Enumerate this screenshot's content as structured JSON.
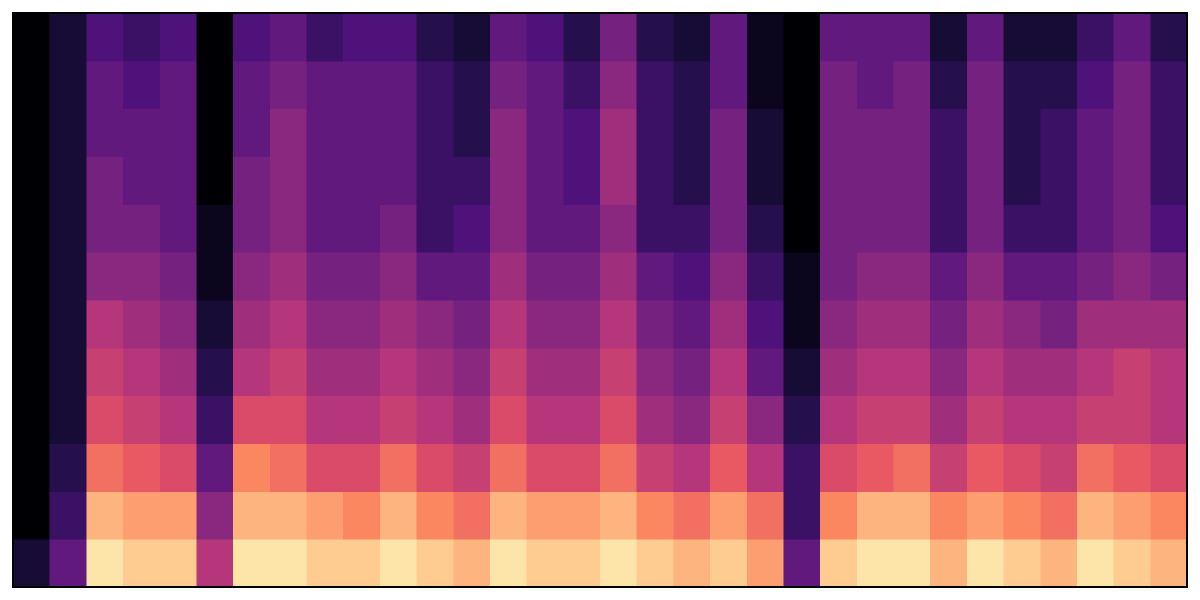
{
  "chart_data": {
    "type": "heatmap",
    "colormap": "magma",
    "zlim": [
      0,
      1
    ],
    "z": [
      [
        0.1,
        0.3,
        0.95,
        0.9,
        0.9,
        0.5,
        0.95,
        0.95,
        0.9,
        0.9,
        0.95,
        0.9,
        0.85,
        0.95,
        0.9,
        0.9,
        0.95,
        0.9,
        0.85,
        0.9,
        0.8,
        0.3,
        0.9,
        0.95,
        0.95,
        0.85,
        0.95,
        0.9,
        0.85,
        0.95,
        0.9,
        0.85
      ],
      [
        0,
        0.2,
        0.85,
        0.8,
        0.8,
        0.4,
        0.85,
        0.85,
        0.8,
        0.75,
        0.85,
        0.75,
        0.7,
        0.85,
        0.8,
        0.8,
        0.85,
        0.75,
        0.7,
        0.8,
        0.7,
        0.2,
        0.75,
        0.85,
        0.85,
        0.75,
        0.8,
        0.75,
        0.7,
        0.85,
        0.8,
        0.75
      ],
      [
        0,
        0.15,
        0.7,
        0.65,
        0.6,
        0.3,
        0.75,
        0.7,
        0.6,
        0.6,
        0.7,
        0.6,
        0.55,
        0.7,
        0.6,
        0.6,
        0.7,
        0.55,
        0.5,
        0.65,
        0.5,
        0.2,
        0.6,
        0.65,
        0.7,
        0.55,
        0.65,
        0.6,
        0.55,
        0.7,
        0.65,
        0.6
      ],
      [
        0,
        0.1,
        0.6,
        0.55,
        0.5,
        0.2,
        0.6,
        0.6,
        0.5,
        0.5,
        0.55,
        0.5,
        0.45,
        0.6,
        0.5,
        0.5,
        0.6,
        0.45,
        0.4,
        0.55,
        0.4,
        0.15,
        0.5,
        0.55,
        0.55,
        0.45,
        0.55,
        0.5,
        0.5,
        0.55,
        0.55,
        0.5
      ],
      [
        0,
        0.1,
        0.55,
        0.5,
        0.45,
        0.15,
        0.5,
        0.55,
        0.45,
        0.45,
        0.5,
        0.45,
        0.4,
        0.55,
        0.45,
        0.45,
        0.55,
        0.4,
        0.35,
        0.5,
        0.3,
        0.1,
        0.45,
        0.5,
        0.5,
        0.4,
        0.5,
        0.45,
        0.45,
        0.5,
        0.55,
        0.5
      ],
      [
        0,
        0.1,
        0.5,
        0.45,
        0.4,
        0.1,
        0.45,
        0.5,
        0.4,
        0.4,
        0.45,
        0.4,
        0.35,
        0.5,
        0.4,
        0.4,
        0.5,
        0.35,
        0.3,
        0.45,
        0.25,
        0.05,
        0.4,
        0.45,
        0.45,
        0.35,
        0.45,
        0.4,
        0.35,
        0.45,
        0.45,
        0.45
      ],
      [
        0,
        0.1,
        0.4,
        0.4,
        0.35,
        0.05,
        0.4,
        0.45,
        0.35,
        0.35,
        0.4,
        0.3,
        0.3,
        0.45,
        0.35,
        0.35,
        0.45,
        0.3,
        0.25,
        0.4,
        0.2,
        0.05,
        0.35,
        0.4,
        0.4,
        0.3,
        0.4,
        0.3,
        0.3,
        0.35,
        0.4,
        0.35
      ],
      [
        0,
        0.1,
        0.35,
        0.35,
        0.3,
        0.05,
        0.35,
        0.4,
        0.3,
        0.3,
        0.35,
        0.2,
        0.25,
        0.4,
        0.3,
        0.3,
        0.4,
        0.2,
        0.2,
        0.35,
        0.15,
        0,
        0.35,
        0.35,
        0.35,
        0.2,
        0.35,
        0.2,
        0.2,
        0.3,
        0.35,
        0.25
      ],
      [
        0,
        0.1,
        0.35,
        0.3,
        0.3,
        0,
        0.35,
        0.4,
        0.3,
        0.3,
        0.3,
        0.2,
        0.2,
        0.4,
        0.3,
        0.25,
        0.45,
        0.2,
        0.15,
        0.35,
        0.1,
        0,
        0.35,
        0.35,
        0.35,
        0.2,
        0.35,
        0.15,
        0.2,
        0.3,
        0.35,
        0.2
      ],
      [
        0,
        0.1,
        0.3,
        0.3,
        0.3,
        0,
        0.3,
        0.4,
        0.3,
        0.3,
        0.3,
        0.2,
        0.15,
        0.4,
        0.3,
        0.25,
        0.45,
        0.2,
        0.15,
        0.35,
        0.1,
        0,
        0.35,
        0.35,
        0.35,
        0.2,
        0.35,
        0.15,
        0.2,
        0.3,
        0.35,
        0.2
      ],
      [
        0,
        0.1,
        0.3,
        0.25,
        0.3,
        0,
        0.3,
        0.35,
        0.3,
        0.3,
        0.3,
        0.2,
        0.15,
        0.35,
        0.3,
        0.2,
        0.4,
        0.2,
        0.15,
        0.3,
        0.05,
        0,
        0.35,
        0.3,
        0.35,
        0.15,
        0.35,
        0.15,
        0.15,
        0.25,
        0.35,
        0.2
      ],
      [
        0,
        0.1,
        0.25,
        0.2,
        0.25,
        0,
        0.25,
        0.3,
        0.2,
        0.25,
        0.25,
        0.15,
        0.1,
        0.3,
        0.25,
        0.15,
        0.35,
        0.15,
        0.1,
        0.3,
        0.05,
        0,
        0.3,
        0.3,
        0.3,
        0.1,
        0.3,
        0.1,
        0.1,
        0.2,
        0.3,
        0.15
      ]
    ]
  }
}
